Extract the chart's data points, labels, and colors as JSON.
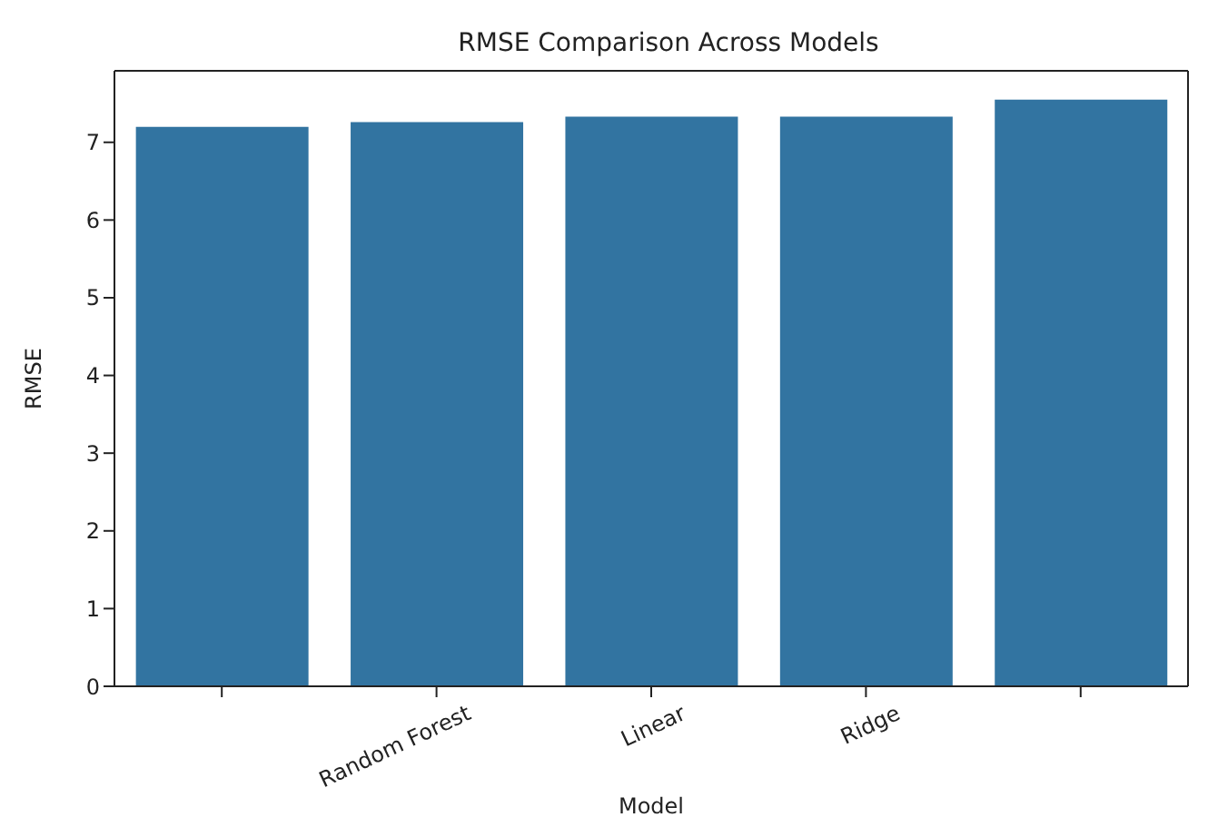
{
  "chart_data": {
    "type": "bar",
    "title": "RMSE Comparison Across Models",
    "xlabel": "Model",
    "ylabel": "RMSE",
    "categories": [
      null,
      "Random Forest",
      "Linear",
      "Ridge",
      null
    ],
    "values": [
      7.2,
      7.26,
      7.33,
      7.33,
      7.55
    ],
    "color": "#3274a1",
    "ylim": [
      0,
      7.92
    ],
    "yticks": [
      0,
      1,
      2,
      3,
      4,
      5,
      6,
      7
    ],
    "grid": false
  }
}
